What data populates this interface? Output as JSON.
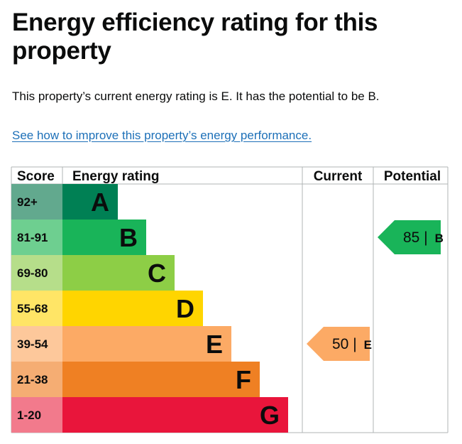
{
  "page": {
    "title": "Energy efficiency rating for this property",
    "summary": "This property’s current energy rating is E. It has the potential to be B.",
    "improve_link": "See how to improve this property’s energy performance."
  },
  "chart_data": {
    "type": "bar",
    "headers": {
      "score": "Score",
      "rating": "Energy rating",
      "current": "Current",
      "potential": "Potential"
    },
    "bands": [
      {
        "letter": "A",
        "range": "92+",
        "color": "#008054",
        "score_color": "#62a98e"
      },
      {
        "letter": "B",
        "range": "81-91",
        "color": "#19b459",
        "score_color": "#6ecf90"
      },
      {
        "letter": "C",
        "range": "69-80",
        "color": "#8dce46",
        "score_color": "#b6de8a"
      },
      {
        "letter": "D",
        "range": "55-68",
        "color": "#ffd500",
        "score_color": "#ffe566"
      },
      {
        "letter": "E",
        "range": "39-54",
        "color": "#fcaa65",
        "score_color": "#fdc89b"
      },
      {
        "letter": "F",
        "range": "21-38",
        "color": "#ef8023",
        "score_color": "#f5ad73"
      },
      {
        "letter": "G",
        "range": "1-20",
        "color": "#e9153b",
        "score_color": "#f27a8c"
      }
    ],
    "current": {
      "score": 50,
      "band": "E",
      "color": "#fcaa65"
    },
    "potential": {
      "score": 85,
      "band": "B",
      "color": "#19b459"
    }
  }
}
